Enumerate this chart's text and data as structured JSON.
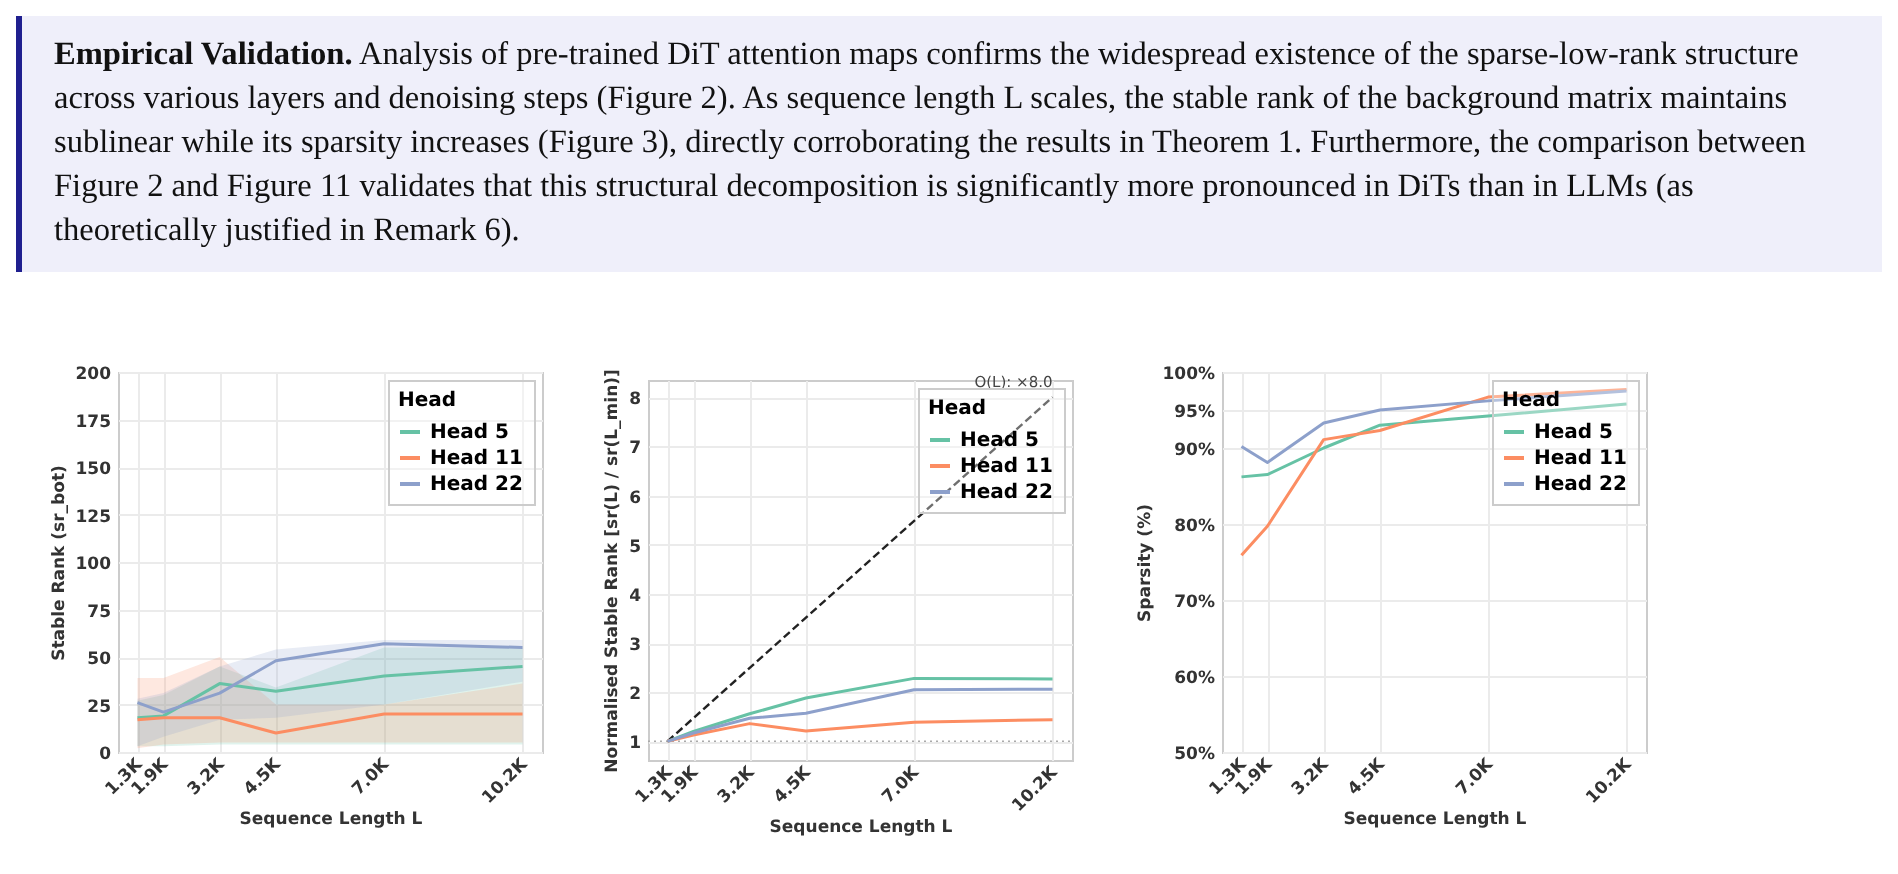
{
  "chart_data": [
    {
      "type": "other",
      "title": "Empirical Validation.",
      "annotations": [
        "Analysis of pre-trained DiT attention maps confirms the widespread existence of the sparse-low-rank structure across various layers and denoising steps (Figure 2). As sequence length L scales, the stable rank of the background matrix maintains sublinear while its sparsity increases (Figure 3), directly corroborating the results in Theorem 1. Furthermore, the comparison between Figure 2 and Figure 11 validates that this structural decomposition is significantly more pronounced in DiTs than in LLMs (as theoretically justified in Remark 6)."
      ]
    },
    {
      "type": "line",
      "xlabel": "Sequence Length  L",
      "ylabel": "Stable Rank  (sr_bot)",
      "legend_title": "Head",
      "legend": "top right",
      "grid": true,
      "x": [
        1.3,
        1.9,
        3.2,
        4.5,
        7.0,
        10.2
      ],
      "xlim": [
        0.85,
        10.65
      ],
      "xticks": [
        {
          "value": 1.3,
          "label": "1.3K"
        },
        {
          "value": 1.9,
          "label": "1.9K"
        },
        {
          "value": 3.2,
          "label": "3.2K"
        },
        {
          "value": 4.5,
          "label": "4.5K"
        },
        {
          "value": 7.0,
          "label": "7.0K"
        },
        {
          "value": 10.2,
          "label": "10.2K"
        }
      ],
      "ylim": [
        0,
        200
      ],
      "yticks": [
        0,
        25,
        50,
        75,
        100,
        125,
        150,
        175,
        200
      ],
      "series": [
        {
          "name": "Head 5",
          "color": "#66c2a5",
          "values": [
            18,
            19,
            36,
            32,
            40,
            45
          ],
          "lower": [
            3,
            3,
            4,
            4,
            4,
            4
          ],
          "upper": [
            27,
            30,
            45,
            34,
            55,
            55
          ]
        },
        {
          "name": "Head 11",
          "color": "#fc8d62",
          "values": [
            17,
            18,
            18,
            10,
            20,
            20
          ],
          "lower": [
            2,
            4,
            5,
            5,
            5,
            5
          ],
          "upper": [
            39,
            39,
            50,
            25,
            25,
            36
          ]
        },
        {
          "name": "Head 22",
          "color": "#8da0cb",
          "values": [
            26,
            21,
            31,
            48,
            57,
            55
          ],
          "lower": [
            3,
            8,
            17,
            18,
            25,
            37
          ],
          "upper": [
            28,
            31,
            45,
            54,
            59,
            59
          ]
        }
      ]
    },
    {
      "type": "line",
      "xlabel": "Sequence Length  L",
      "ylabel": "Normalised Stable Rank  [sr(L) / sr(L_min)]",
      "legend_title": "Head",
      "legend": "top right",
      "grid": true,
      "x": [
        1.3,
        1.9,
        3.2,
        4.5,
        7.0,
        10.2
      ],
      "xlim": [
        0.85,
        10.65
      ],
      "xticks": [
        {
          "value": 1.3,
          "label": "1.3K"
        },
        {
          "value": 1.9,
          "label": "1.9K"
        },
        {
          "value": 3.2,
          "label": "3.2K"
        },
        {
          "value": 4.5,
          "label": "4.5K"
        },
        {
          "value": 7.0,
          "label": "7.0K"
        },
        {
          "value": 10.2,
          "label": "10.2K"
        }
      ],
      "ylim": [
        0.62,
        8.35
      ],
      "yticks": [
        1,
        2,
        3,
        4,
        5,
        6,
        7,
        8
      ],
      "ref_lines": [
        {
          "axis": "y",
          "value": 1,
          "color": "#aaaaaa",
          "line_style": "dotted"
        }
      ],
      "annotations": [
        {
          "text": "O(L): ×8.0",
          "x": 10.2,
          "y": 8.0
        }
      ],
      "series": [
        {
          "name": "Head 5",
          "color": "#66c2a5",
          "values": [
            1,
            1.2,
            1.56,
            1.88,
            2.28,
            2.27
          ]
        },
        {
          "name": "Head 11",
          "color": "#fc8d62",
          "values": [
            1,
            1.13,
            1.36,
            1.21,
            1.39,
            1.44
          ]
        },
        {
          "name": "Head 22",
          "color": "#8da0cb",
          "values": [
            1,
            1.17,
            1.47,
            1.57,
            2.05,
            2.06
          ]
        },
        {
          "type": "line",
          "color": "#222222",
          "line_style": "dashed",
          "x": [
            1.3,
            10.2
          ],
          "values": [
            1,
            8.0
          ]
        }
      ]
    },
    {
      "type": "line",
      "xlabel": "Sequence Length  L",
      "ylabel": "Sparsity (%)",
      "legend_title": "Head",
      "legend": "top right",
      "grid": true,
      "x": [
        1.3,
        1.9,
        3.2,
        4.5,
        7.0,
        10.2
      ],
      "xlim": [
        0.85,
        10.65
      ],
      "xticks": [
        {
          "value": 1.3,
          "label": "1.3K"
        },
        {
          "value": 1.9,
          "label": "1.9K"
        },
        {
          "value": 3.2,
          "label": "3.2K"
        },
        {
          "value": 4.5,
          "label": "4.5K"
        },
        {
          "value": 7.0,
          "label": "7.0K"
        },
        {
          "value": 10.2,
          "label": "10.2K"
        }
      ],
      "ylim": [
        50,
        100
      ],
      "yticks": [
        {
          "value": 50,
          "label": "50%"
        },
        {
          "value": 60,
          "label": "60%"
        },
        {
          "value": 70,
          "label": "70%"
        },
        {
          "value": 80,
          "label": "80%"
        },
        {
          "value": 90,
          "label": "90%"
        },
        {
          "value": 95,
          "label": "95%"
        },
        {
          "value": 100,
          "label": "100%"
        }
      ],
      "series": [
        {
          "name": "Head 5",
          "color": "#66c2a5",
          "values": [
            86.2,
            86.5,
            90,
            93,
            94.2,
            95.8
          ]
        },
        {
          "name": "Head 11",
          "color": "#fc8d62",
          "values": [
            75.9,
            79.7,
            91.1,
            92.3,
            96.7,
            97.7
          ]
        },
        {
          "name": "Head 22",
          "color": "#8da0cb",
          "values": [
            90.2,
            88.1,
            93.3,
            95,
            96.2,
            97.5
          ]
        }
      ]
    }
  ]
}
